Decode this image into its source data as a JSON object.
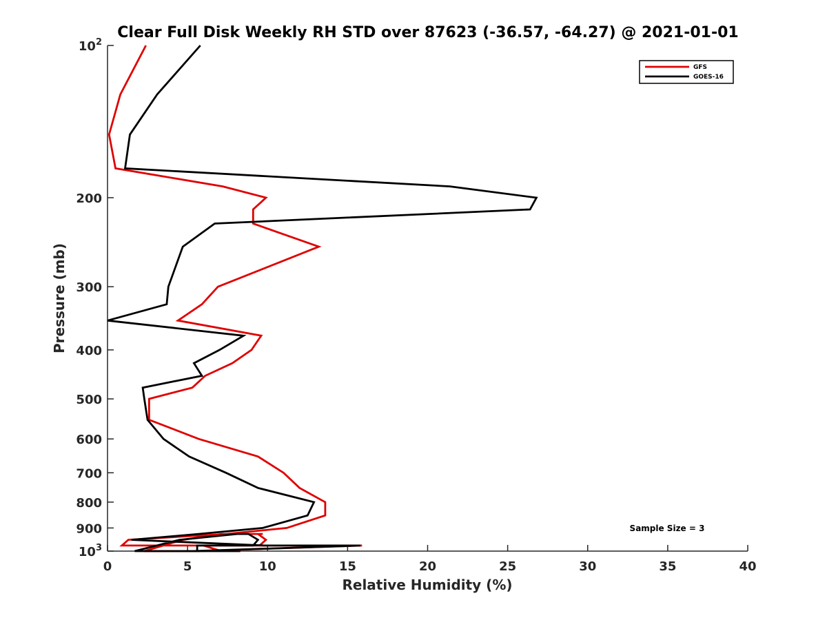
{
  "chart_data": {
    "type": "line",
    "title": "Clear Full Disk Weekly RH STD over 87623 (-36.57, -64.27) @ 2021-01-01",
    "xlabel": "Relative Humidity (%)",
    "ylabel": "Pressure (mb)",
    "xlim": [
      0,
      40
    ],
    "ylim": [
      100,
      1000
    ],
    "y_scale": "log",
    "y_reversed": true,
    "x_ticks": [
      "0",
      "5",
      "10",
      "15",
      "20",
      "25",
      "30",
      "35",
      "40"
    ],
    "y_ticks": [
      {
        "value": 100,
        "base": "10",
        "exp": "2"
      },
      {
        "value": 200,
        "label": "200"
      },
      {
        "value": 300,
        "label": "300"
      },
      {
        "value": 400,
        "label": "400"
      },
      {
        "value": 500,
        "label": "500"
      },
      {
        "value": 600,
        "label": "600"
      },
      {
        "value": 700,
        "label": "700"
      },
      {
        "value": 800,
        "label": "800"
      },
      {
        "value": 900,
        "label": "900"
      },
      {
        "value": 1000,
        "base": "10",
        "exp": "3"
      }
    ],
    "legend_position": "top-right",
    "grid": false,
    "annotation": "Sample Size = 3",
    "series": [
      {
        "name": "GFS",
        "color": "#e00000",
        "points": [
          [
            2.4,
            100
          ],
          [
            0.8,
            125
          ],
          [
            0.1,
            150
          ],
          [
            0.5,
            175
          ],
          [
            7.2,
            190
          ],
          [
            9.9,
            200
          ],
          [
            9.1,
            211
          ],
          [
            9.1,
            225
          ],
          [
            13.2,
            250
          ],
          [
            6.9,
            300
          ],
          [
            5.9,
            325
          ],
          [
            4.4,
            350
          ],
          [
            9.6,
            375
          ],
          [
            9.0,
            400
          ],
          [
            7.8,
            425
          ],
          [
            6.1,
            450
          ],
          [
            5.3,
            475
          ],
          [
            2.6,
            500
          ],
          [
            2.6,
            550
          ],
          [
            5.7,
            600
          ],
          [
            9.4,
            650
          ],
          [
            11.0,
            700
          ],
          [
            12.0,
            750
          ],
          [
            13.6,
            800
          ],
          [
            13.6,
            850
          ],
          [
            11.2,
            900
          ],
          [
            7.4,
            925
          ],
          [
            1.3,
            950
          ],
          [
            0.9,
            975
          ],
          [
            15.9,
            975
          ],
          [
            5.6,
            1000
          ],
          [
            4.4,
            1000
          ],
          [
            2.3,
            1000
          ],
          [
            4.7,
            950
          ],
          [
            7.1,
            925
          ],
          [
            9.6,
            925
          ],
          [
            9.7,
            925
          ],
          [
            9.4,
            925
          ],
          [
            9.9,
            950
          ],
          [
            9.5,
            975
          ],
          [
            7.0,
            975
          ],
          [
            6.0,
            975
          ],
          [
            7.1,
            1000
          ],
          [
            7.1,
            1000
          ]
        ],
        "values_comment_free": true
      },
      {
        "name": "GOES-16",
        "color": "#000000",
        "points": [
          [
            5.8,
            100
          ],
          [
            3.1,
            125
          ],
          [
            1.4,
            150
          ],
          [
            1.1,
            175
          ],
          [
            21.4,
            190
          ],
          [
            26.8,
            200
          ],
          [
            26.4,
            211
          ],
          [
            6.7,
            225
          ],
          [
            4.7,
            250
          ],
          [
            3.8,
            300
          ],
          [
            3.7,
            325
          ],
          [
            0.0,
            350
          ],
          [
            8.5,
            375
          ],
          [
            7.0,
            400
          ],
          [
            5.4,
            425
          ],
          [
            5.9,
            450
          ],
          [
            2.2,
            475
          ],
          [
            2.3,
            500
          ],
          [
            2.5,
            550
          ],
          [
            3.5,
            600
          ],
          [
            5.1,
            650
          ],
          [
            7.4,
            700
          ],
          [
            9.4,
            750
          ],
          [
            12.9,
            800
          ],
          [
            12.5,
            850
          ],
          [
            9.7,
            900
          ],
          [
            5.7,
            925
          ],
          [
            1.5,
            950
          ],
          [
            9.8,
            975
          ],
          [
            15.8,
            975
          ],
          [
            5.3,
            1000
          ],
          [
            3.7,
            1000
          ],
          [
            1.7,
            1000
          ],
          [
            4.5,
            950
          ],
          [
            8.1,
            925
          ],
          [
            8.4,
            925
          ],
          [
            8.8,
            925
          ],
          [
            9.4,
            950
          ],
          [
            9.1,
            975
          ],
          [
            7.0,
            975
          ],
          [
            5.6,
            975
          ],
          [
            5.6,
            1000
          ],
          [
            8.3,
            1000
          ]
        ]
      }
    ]
  }
}
